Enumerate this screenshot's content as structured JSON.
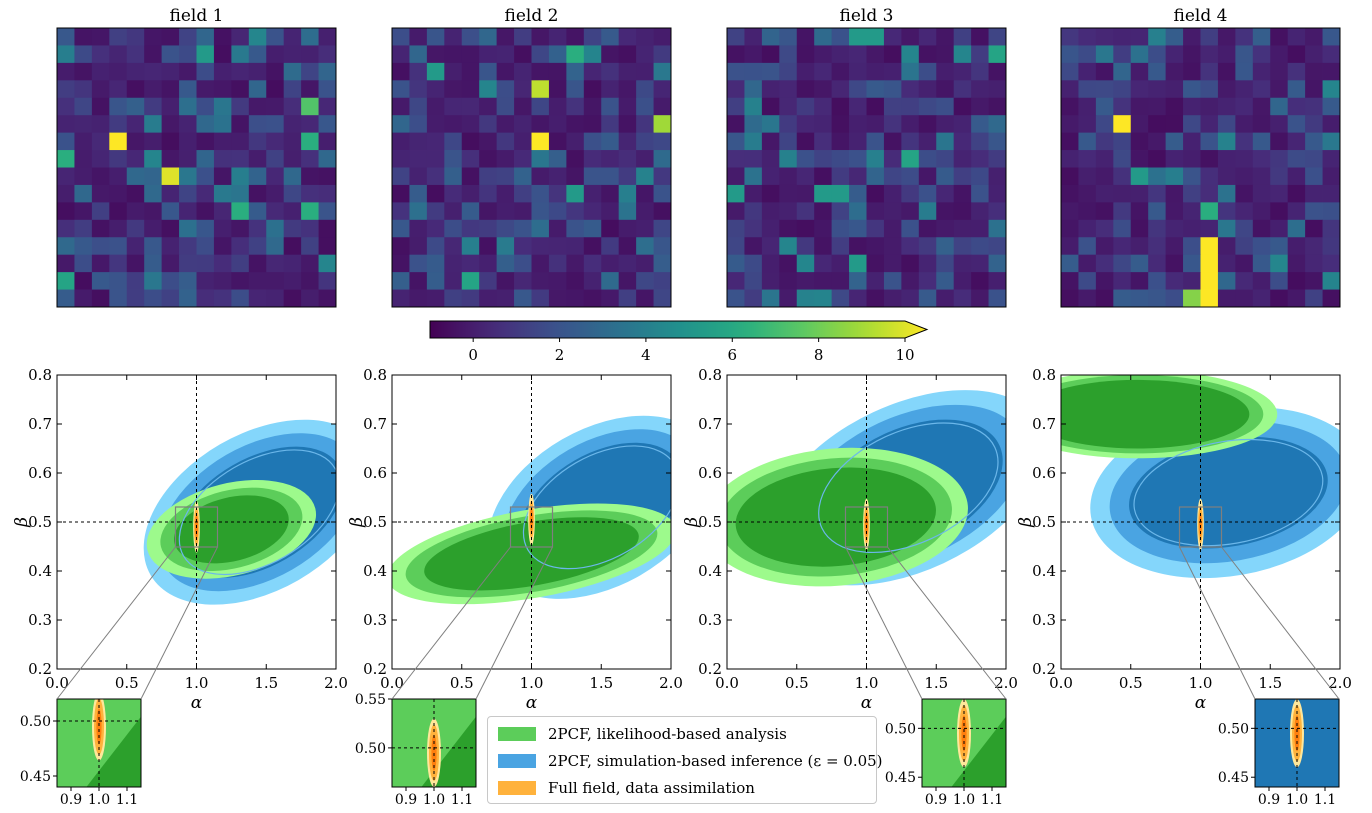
{
  "chart_data": {
    "type": "heatmap+contour",
    "colorbar": {
      "ticks": [
        0,
        2,
        4,
        6,
        8,
        10
      ],
      "range": [
        -1,
        10
      ],
      "colormap": "viridis",
      "extend": "max"
    },
    "fields": [
      {
        "title": "field 1",
        "grid": "16x16",
        "bright_cells": [
          {
            "col": 3,
            "row": 6,
            "value": 10
          },
          {
            "col": 6,
            "row": 8,
            "value": 9.5
          },
          {
            "col": 14,
            "row": 4,
            "value": 7
          },
          {
            "col": 14,
            "row": 6,
            "value": 6
          },
          {
            "col": 0,
            "row": 7,
            "value": 6
          },
          {
            "col": 10,
            "row": 10,
            "value": 6
          },
          {
            "col": 14,
            "row": 10,
            "value": 6
          },
          {
            "col": 0,
            "row": 14,
            "value": 5.5
          },
          {
            "col": 8,
            "row": 1,
            "value": 5
          }
        ]
      },
      {
        "title": "field 2",
        "grid": "16x16",
        "bright_cells": [
          {
            "col": 8,
            "row": 3,
            "value": 9
          },
          {
            "col": 8,
            "row": 6,
            "value": 10
          },
          {
            "col": 15,
            "row": 5,
            "value": 8.5
          },
          {
            "col": 10,
            "row": 1,
            "value": 6
          },
          {
            "col": 4,
            "row": 14,
            "value": 5.5
          },
          {
            "col": 2,
            "row": 2,
            "value": 5
          },
          {
            "col": 10,
            "row": 9,
            "value": 5
          }
        ]
      },
      {
        "title": "field 3",
        "grid": "16x16",
        "bright_cells": [
          {
            "col": 7,
            "row": 0,
            "value": 5
          },
          {
            "col": 8,
            "row": 0,
            "value": 5
          },
          {
            "col": 15,
            "row": 1,
            "value": 5.5
          },
          {
            "col": 10,
            "row": 7,
            "value": 5.5
          },
          {
            "col": 5,
            "row": 9,
            "value": 5
          },
          {
            "col": 6,
            "row": 9,
            "value": 5
          },
          {
            "col": 0,
            "row": 9,
            "value": 5
          },
          {
            "col": 7,
            "row": 13,
            "value": 5
          }
        ]
      },
      {
        "title": "field 4",
        "grid": "16x16",
        "bright_cells": [
          {
            "col": 3,
            "row": 5,
            "value": 10
          },
          {
            "col": 8,
            "row": 12,
            "value": 10
          },
          {
            "col": 8,
            "row": 13,
            "value": 10
          },
          {
            "col": 8,
            "row": 14,
            "value": 10
          },
          {
            "col": 8,
            "row": 15,
            "value": 10
          },
          {
            "col": 7,
            "row": 15,
            "value": 8
          },
          {
            "col": 8,
            "row": 10,
            "value": 6
          },
          {
            "col": 4,
            "row": 8,
            "value": 5
          }
        ]
      }
    ],
    "posteriors": {
      "xlabel": "α",
      "ylabel": "β",
      "xlim": [
        0,
        2
      ],
      "ylim": [
        0.2,
        0.8
      ],
      "xticks": [
        "0.0",
        "0.5",
        "1.0",
        "1.5",
        "2.0"
      ],
      "yticks": [
        "0.2",
        "0.3",
        "0.4",
        "0.5",
        "0.6",
        "0.7",
        "0.8"
      ],
      "truth": {
        "alpha": 1.0,
        "beta": 0.5
      },
      "panels": [
        {
          "green": {
            "center": [
              1.25,
              0.485
            ],
            "outer": [
              0.62,
              0.094
            ],
            "inner": [
              0.42,
              0.065
            ],
            "angle": 14
          },
          "blue": {
            "center": [
              1.45,
              0.52
            ],
            "outer": [
              0.9,
              0.16
            ],
            "inner": [
              0.66,
              0.11
            ],
            "angle": 30
          },
          "orange": {
            "center": [
              1.0,
              0.49
            ],
            "semi": [
              0.016,
              0.035
            ]
          }
        },
        {
          "green": {
            "center": [
              1.0,
              0.435
            ],
            "outer": [
              1.05,
              0.09
            ],
            "inner": [
              0.78,
              0.065
            ],
            "angle": 10
          },
          "blue": {
            "center": [
              1.5,
              0.53
            ],
            "outer": [
              0.88,
              0.16
            ],
            "inner": [
              0.64,
              0.11
            ],
            "angle": 30
          },
          "orange": {
            "center": [
              1.0,
              0.505
            ],
            "semi": [
              0.016,
              0.035
            ]
          }
        },
        {
          "green": {
            "center": [
              0.78,
              0.51
            ],
            "outer": [
              0.95,
              0.14
            ],
            "inner": [
              0.72,
              0.1
            ],
            "angle": 5
          },
          "blue": {
            "center": [
              1.3,
              0.57
            ],
            "outer": [
              1.05,
              0.17
            ],
            "inner": [
              0.72,
              0.12
            ],
            "angle": 25
          },
          "orange": {
            "center": [
              1.0,
              0.495
            ],
            "semi": [
              0.016,
              0.035
            ]
          }
        },
        {
          "green": {
            "center": [
              0.55,
              0.72
            ],
            "outer": [
              1.0,
              0.09
            ],
            "inner": [
              0.8,
              0.07
            ],
            "angle": 0
          },
          "blue": {
            "center": [
              1.2,
              0.56
            ],
            "outer": [
              1.0,
              0.17
            ],
            "inner": [
              0.72,
              0.11
            ],
            "angle": 10
          },
          "orange": {
            "center": [
              1.0,
              0.495
            ],
            "semi": [
              0.016,
              0.035
            ]
          }
        }
      ]
    },
    "insets": [
      {
        "xticks": [
          "0.9",
          "1.0",
          "1.1"
        ],
        "yticks": [
          "0.45",
          "0.50"
        ],
        "ylim": [
          0.44,
          0.52
        ],
        "background": "green"
      },
      {
        "xticks": [
          "0.9",
          "1.0",
          "1.1"
        ],
        "yticks": [
          "0.50",
          "0.55"
        ],
        "ylim": [
          0.46,
          0.55
        ],
        "background": "green"
      },
      {
        "xticks": [
          "0.9",
          "1.0",
          "1.1"
        ],
        "yticks": [
          "0.45",
          "0.50"
        ],
        "ylim": [
          0.44,
          0.53
        ],
        "background": "green"
      },
      {
        "xticks": [
          "0.9",
          "1.0",
          "1.1"
        ],
        "yticks": [
          "0.45",
          "0.50"
        ],
        "ylim": [
          0.44,
          0.53
        ],
        "background": "blue"
      }
    ],
    "legend": [
      {
        "label": "2PCF, likelihood-based analysis",
        "color": "#5ccd5a"
      },
      {
        "label": "2PCF, simulation-based inference (ε = 0.05)",
        "color": "#4aa4e2"
      },
      {
        "label": "Full field, data assimilation",
        "color": "#ffb23c"
      }
    ]
  }
}
